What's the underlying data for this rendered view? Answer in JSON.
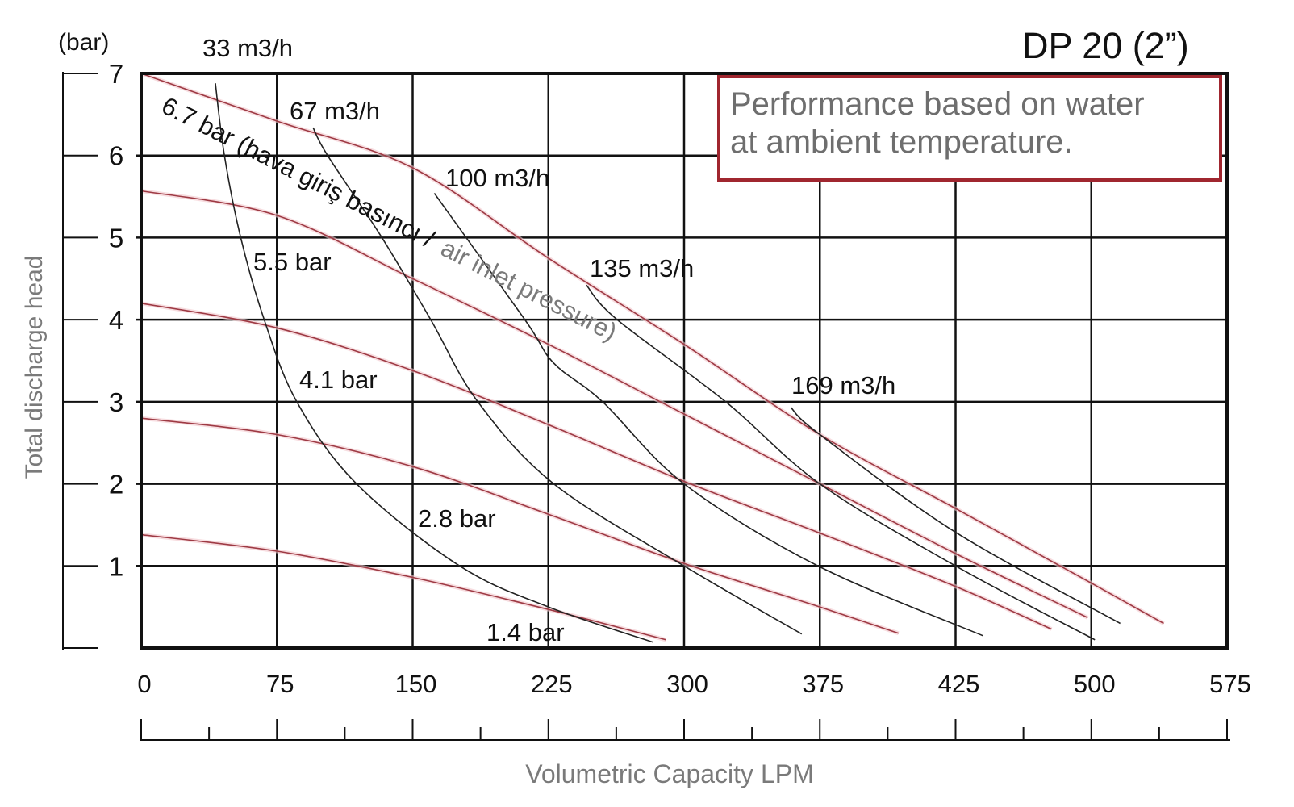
{
  "chart_data": {
    "type": "line",
    "title": "DP 20 (2”)",
    "note": [
      "Performance based on water",
      "at ambient temperature."
    ],
    "xlabel": "Volumetric Capacity LPM",
    "ylabel": "Total discharge head",
    "yunit": "(bar)",
    "xticks": [
      0,
      75,
      150,
      225,
      300,
      375,
      425,
      500,
      575
    ],
    "yticks": [
      1,
      2,
      3,
      4,
      5,
      6,
      7
    ],
    "ylim": [
      0,
      7
    ],
    "grid": true,
    "colors": {
      "pressure": "#9e3a44",
      "flow": "#222222",
      "grid": "#111111",
      "note_border": "#a0262f",
      "note_text": "#6e6e6e"
    },
    "pressure_annotation": {
      "black_part": "6.7 bar (hava giriş basıncı /",
      "gray_part": "air inlet pressure)"
    },
    "pressure_series": [
      {
        "name": "6.7 bar",
        "points": [
          [
            0,
            7
          ],
          [
            75,
            6.42
          ],
          [
            150,
            5.85
          ],
          [
            225,
            4.75
          ],
          [
            300,
            3.7
          ],
          [
            375,
            2.6
          ],
          [
            425,
            1.7
          ],
          [
            500,
            0.79
          ],
          [
            540,
            0.3
          ]
        ]
      },
      {
        "name": "5.5 bar",
        "points": [
          [
            0,
            5.57
          ],
          [
            75,
            5.27
          ],
          [
            150,
            4.5
          ],
          [
            225,
            3.7
          ],
          [
            300,
            2.85
          ],
          [
            375,
            2.0
          ],
          [
            425,
            1.15
          ],
          [
            498,
            0.37
          ]
        ]
      },
      {
        "name": "4.1 bar",
        "points": [
          [
            0,
            4.2
          ],
          [
            75,
            3.9
          ],
          [
            150,
            3.38
          ],
          [
            225,
            2.72
          ],
          [
            300,
            2.03
          ],
          [
            375,
            1.4
          ],
          [
            425,
            0.75
          ],
          [
            478,
            0.23
          ]
        ]
      },
      {
        "name": "2.8 bar",
        "points": [
          [
            0,
            2.8
          ],
          [
            75,
            2.6
          ],
          [
            150,
            2.21
          ],
          [
            225,
            1.63
          ],
          [
            300,
            1.03
          ],
          [
            375,
            0.5
          ],
          [
            404,
            0.18
          ]
        ]
      },
      {
        "name": "1.4 bar",
        "points": [
          [
            0,
            1.38
          ],
          [
            75,
            1.18
          ],
          [
            150,
            0.86
          ],
          [
            225,
            0.47
          ],
          [
            290,
            0.1
          ]
        ]
      }
    ],
    "flow_series": [
      {
        "name": "33 m3/h",
        "points": [
          [
            41,
            6.88
          ],
          [
            46,
            6
          ],
          [
            55,
            5
          ],
          [
            68,
            4
          ],
          [
            86,
            3
          ],
          [
            119,
            2
          ],
          [
            176,
            1
          ],
          [
            225,
            0.5
          ],
          [
            283,
            0.07
          ]
        ]
      },
      {
        "name": "67 m3/h",
        "points": [
          [
            95,
            6.34
          ],
          [
            103,
            6
          ],
          [
            133,
            5
          ],
          [
            160,
            4
          ],
          [
            186,
            3
          ],
          [
            228,
            2
          ],
          [
            300,
            1
          ],
          [
            365,
            0.17
          ]
        ]
      },
      {
        "name": "100 m3/h",
        "points": [
          [
            162,
            5.54
          ],
          [
            212,
            4
          ],
          [
            228,
            3.47
          ],
          [
            255,
            3
          ],
          [
            300,
            2
          ],
          [
            374,
            1
          ],
          [
            440,
            0.15
          ]
        ]
      },
      {
        "name": "135 m3/h",
        "points": [
          [
            246,
            4.42
          ],
          [
            263,
            4
          ],
          [
            323,
            3
          ],
          [
            375,
            2
          ],
          [
            425,
            1
          ],
          [
            502,
            0.1
          ]
        ]
      },
      {
        "name": "169 m3/h",
        "points": [
          [
            359,
            2.93
          ],
          [
            375,
            2.6
          ],
          [
            425,
            1.41
          ],
          [
            516,
            0.3
          ]
        ]
      }
    ]
  }
}
